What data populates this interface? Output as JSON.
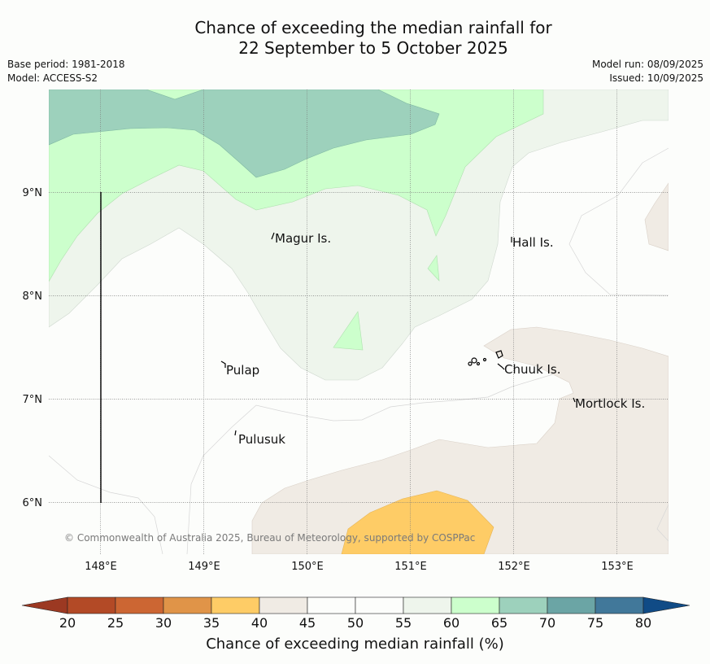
{
  "title_line1": "Chance of exceeding the median rainfall for",
  "title_line2": "22 September to 5 October 2025",
  "base_period": "Base period: 1981-2018",
  "model": "Model: ACCESS-S2",
  "model_run": "Model run: 08/09/2025",
  "issued": "Issued: 10/09/2025",
  "copyright": "© Commonwealth of Australia 2025, Bureau of Meteorology, supported by COSPPac",
  "lon_labels": [
    "148°E",
    "149°E",
    "150°E",
    "151°E",
    "152°E",
    "153°E"
  ],
  "lat_labels": [
    "9°N",
    "8°N",
    "7°N",
    "6°N"
  ],
  "islands": [
    "Magur Is.",
    "Hall Is.",
    "Pulap",
    "Chuuk Is.",
    "Mortlock Is.",
    "Pulusuk"
  ],
  "colorbar": {
    "title": "Chance of exceeding median rainfall (%)",
    "ticks": [
      "20",
      "25",
      "30",
      "35",
      "40",
      "45",
      "50",
      "55",
      "60",
      "65",
      "70",
      "75",
      "80"
    ],
    "colors": [
      "#b34a26",
      "#cc6633",
      "#e09448",
      "#fecc66",
      "#f0ebe4",
      "#fcfdfb",
      "#fcfdfb",
      "#eef5ec",
      "#ccffcc",
      "#9dd1bc",
      "#6ba5a5",
      "#41789a"
    ],
    "under_color": "#9c3922",
    "over_color": "#104b86"
  }
}
